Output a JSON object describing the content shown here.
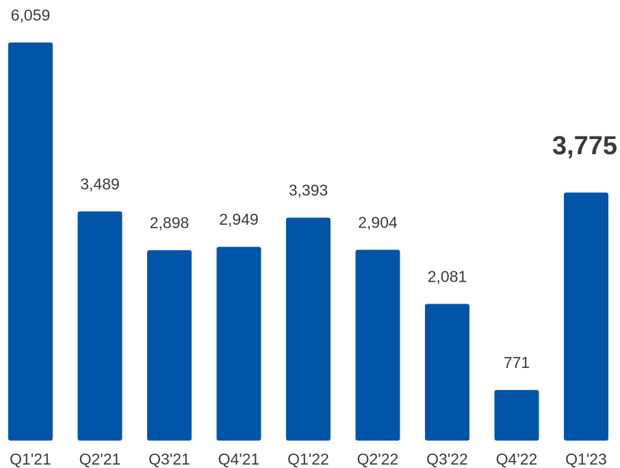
{
  "chart_data": {
    "type": "bar",
    "categories": [
      "Q1'21",
      "Q2'21",
      "Q3'21",
      "Q4'21",
      "Q1'22",
      "Q2'22",
      "Q3'22",
      "Q4'22",
      "Q1'23"
    ],
    "values": [
      6059,
      3489,
      2898,
      2949,
      3393,
      2904,
      2081,
      771,
      3775
    ],
    "value_labels": [
      "6,059",
      "3,489",
      "2,898",
      "2,949",
      "3,393",
      "2,904",
      "2,081",
      "771",
      "3,775"
    ],
    "highlight_index": 8,
    "title": "",
    "xlabel": "",
    "ylabel": "",
    "ylim": [
      0,
      6059
    ],
    "grid": false,
    "colors": {
      "bar": "#0055a8",
      "highlight_label": "#0055a8",
      "label": "#3a3a3a"
    }
  }
}
